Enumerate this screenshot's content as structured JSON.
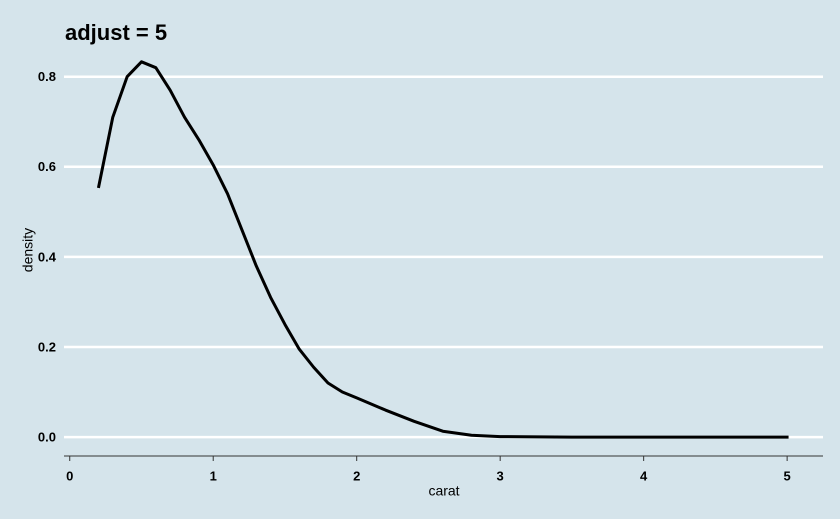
{
  "chart_data": {
    "type": "line",
    "title": "adjust = 5",
    "x_label": "carat",
    "y_label": "density",
    "x": [
      0.2,
      0.3,
      0.4,
      0.5,
      0.6,
      0.7,
      0.8,
      0.9,
      1.0,
      1.1,
      1.2,
      1.3,
      1.4,
      1.5,
      1.6,
      1.7,
      1.8,
      1.9,
      2.0,
      2.2,
      2.4,
      2.6,
      2.8,
      3.0,
      3.5,
      4.0,
      4.5,
      5.01
    ],
    "y": [
      0.553,
      0.71,
      0.8,
      0.833,
      0.82,
      0.77,
      0.71,
      0.66,
      0.604,
      0.54,
      0.46,
      0.38,
      0.31,
      0.25,
      0.195,
      0.155,
      0.12,
      0.1,
      0.087,
      0.06,
      0.035,
      0.013,
      0.004,
      0.001,
      0,
      0,
      0,
      0
    ],
    "color": "#000000",
    "xlim": [
      -0.04,
      5.25
    ],
    "ylim": [
      -0.042,
      0.877
    ],
    "xticks": [
      0,
      1,
      2,
      3,
      4,
      5
    ],
    "yticks": [
      {
        "value": 0,
        "label": "0.0"
      },
      0.2,
      0.4,
      0.6,
      0.8
    ],
    "grid": true
  }
}
